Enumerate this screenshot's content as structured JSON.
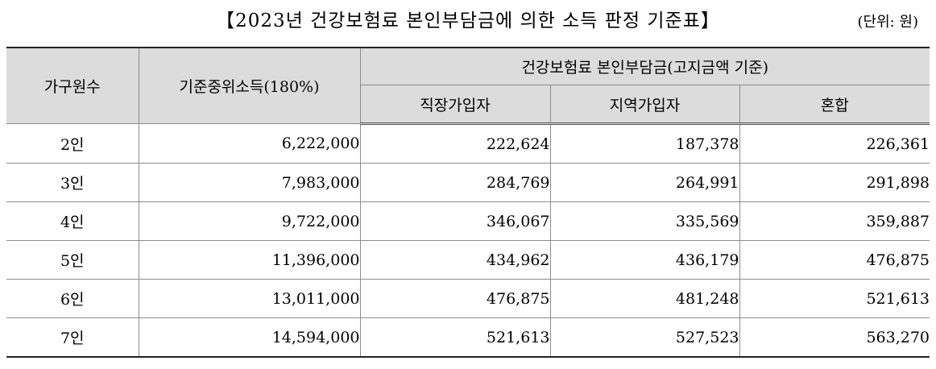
{
  "title": "【2023년 건강보험료 본인부담금에 의한 소득 판정 기준표】",
  "unit": "(단위: 원)",
  "table": {
    "header": {
      "household": "가구원수",
      "median_income": "기준중위소득(180%)",
      "premium_group": "건강보험료 본인부담금(고지금액 기준)",
      "employee": "직장가입자",
      "regional": "지역가입자",
      "mixed": "혼합"
    },
    "rows": [
      {
        "household": "2인",
        "median_income": "6,222,000",
        "employee": "222,624",
        "regional": "187,378",
        "mixed": "226,361"
      },
      {
        "household": "3인",
        "median_income": "7,983,000",
        "employee": "284,769",
        "regional": "264,991",
        "mixed": "291,898"
      },
      {
        "household": "4인",
        "median_income": "9,722,000",
        "employee": "346,067",
        "regional": "335,569",
        "mixed": "359,887"
      },
      {
        "household": "5인",
        "median_income": "11,396,000",
        "employee": "434,962",
        "regional": "436,179",
        "mixed": "476,875"
      },
      {
        "household": "6인",
        "median_income": "13,011,000",
        "employee": "476,875",
        "regional": "481,248",
        "mixed": "521,613"
      },
      {
        "household": "7인",
        "median_income": "14,594,000",
        "employee": "521,613",
        "regional": "527,523",
        "mixed": "563,270"
      }
    ]
  }
}
